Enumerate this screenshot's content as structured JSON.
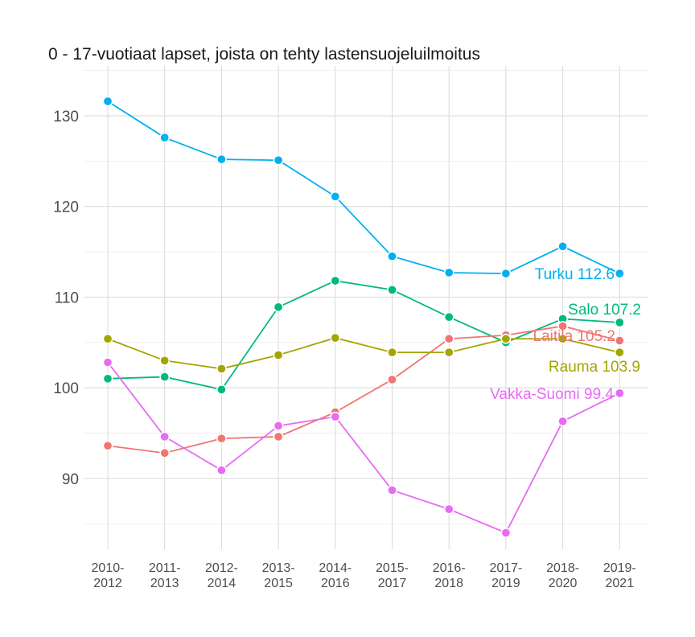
{
  "chart_data": {
    "type": "line",
    "title": "0 - 17-vuotiaat lapset, joista on tehty lastensuojeluilmoitus",
    "xlabel": "",
    "ylabel": "",
    "categories": [
      [
        "2010-",
        "2012"
      ],
      [
        "2011-",
        "2013"
      ],
      [
        "2012-",
        "2014"
      ],
      [
        "2013-",
        "2015"
      ],
      [
        "2014-",
        "2016"
      ],
      [
        "2015-",
        "2017"
      ],
      [
        "2016-",
        "2018"
      ],
      [
        "2017-",
        "2019"
      ],
      [
        "2018-",
        "2020"
      ],
      [
        "2019-",
        "2021"
      ]
    ],
    "ylim": [
      82.5,
      135
    ],
    "yticks": [
      90,
      100,
      110,
      120,
      130
    ],
    "grid": true,
    "series": [
      {
        "name": "Turku",
        "end_label": "Turku 112.6",
        "color": "#00b0f0",
        "values": [
          131.6,
          127.6,
          125.2,
          125.1,
          121.1,
          114.5,
          112.7,
          112.6,
          115.6,
          112.6
        ]
      },
      {
        "name": "Salo",
        "end_label": "Salo 107.2",
        "color": "#00ba7c",
        "values": [
          101.0,
          101.2,
          99.8,
          108.9,
          111.8,
          110.8,
          107.8,
          105.0,
          107.6,
          107.2
        ]
      },
      {
        "name": "Laitila",
        "end_label": "Laitila 105.2",
        "color": "#f07672",
        "values": [
          93.6,
          92.8,
          94.4,
          94.6,
          97.3,
          100.9,
          105.4,
          105.8,
          106.8,
          105.2
        ]
      },
      {
        "name": "Rauma",
        "end_label": "Rauma 103.9",
        "color": "#a3a500",
        "values": [
          105.4,
          103.0,
          102.1,
          103.6,
          105.5,
          103.9,
          103.9,
          105.4,
          105.4,
          103.9
        ]
      },
      {
        "name": "Vakka-Suomi",
        "end_label": "Vakka-Suomi 99.4",
        "color": "#e76bf3",
        "values": [
          102.8,
          94.6,
          90.9,
          95.8,
          96.8,
          88.7,
          86.6,
          84.0,
          96.3,
          99.4
        ]
      }
    ]
  }
}
